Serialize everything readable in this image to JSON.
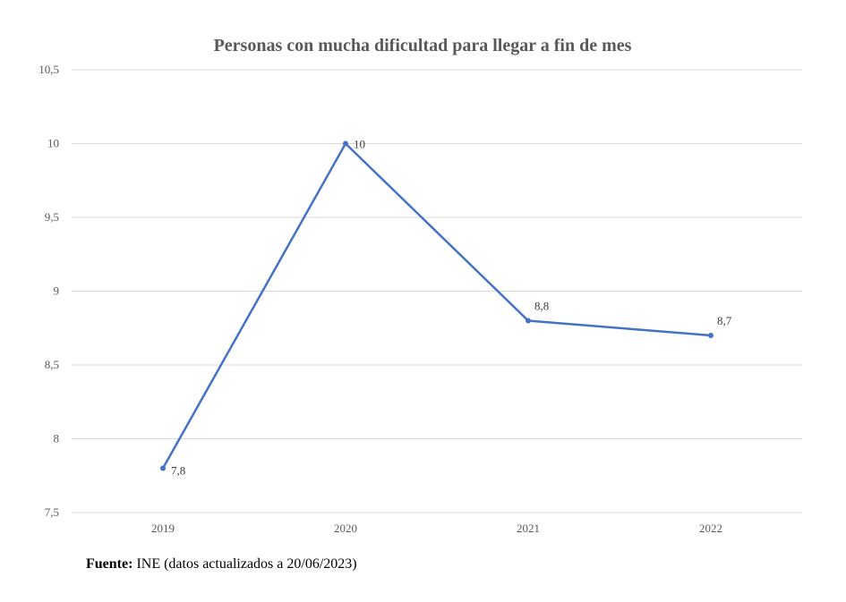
{
  "chart_data": {
    "type": "line",
    "title": "Personas con mucha dificultad para llegar a fin de mes",
    "categories": [
      "2019",
      "2020",
      "2021",
      "2022"
    ],
    "series": [
      {
        "name": "Personas con mucha dificultad para llegar a fin de mes",
        "values": [
          7.8,
          10,
          8.8,
          8.7
        ],
        "labels": [
          "7,8",
          "10",
          "8,8",
          "8,7"
        ]
      }
    ],
    "yticks": [
      7.5,
      8,
      8.5,
      9,
      9.5,
      10,
      10.5
    ],
    "ytick_labels": [
      "7,5",
      "8",
      "8,5",
      "9",
      "9,5",
      "10",
      "10,5"
    ],
    "ylim": [
      7.5,
      10.5
    ],
    "xlabel": "",
    "ylabel": "",
    "grid": true,
    "line_color": "#4472C4",
    "grid_color": "#d9d9d9"
  },
  "source": {
    "label": "Fuente:",
    "text": " INE (datos actualizados a 20/06/2023)"
  }
}
